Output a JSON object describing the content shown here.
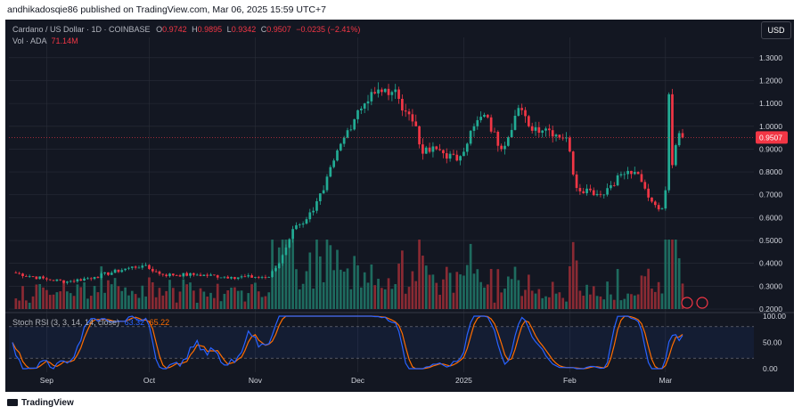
{
  "header": {
    "publisher_line": "andhikadosqie86 published on TradingView.com, Mar 06, 2025 15:59 UTC+7"
  },
  "legend": {
    "symbol": "Cardano / US Dollar · 1D · COINBASE",
    "o_label": "O",
    "o_value": "0.9742",
    "h_label": "H",
    "h_value": "0.9895",
    "l_label": "L",
    "l_value": "0.9342",
    "c_label": "C",
    "c_value": "0.9507",
    "change": "−0.0235 (−2.41%)",
    "vol_label": "Vol · ADA",
    "vol_value": "71.14M",
    "stoch_label": "Stoch RSI (3, 3, 14, 14, close)",
    "stoch_k": "63.32",
    "stoch_d": "65.22"
  },
  "currency_button": "USD",
  "footer": {
    "brand": "TradingView"
  },
  "colors": {
    "up": "#22ab94",
    "down": "#f23645",
    "bg": "#131722",
    "k_line": "#2962ff",
    "d_line": "#ff6d00",
    "grid": "#2a2e39"
  },
  "chart_data": [
    {
      "type": "candlestick",
      "title": "Cardano / US Dollar · 1D · COINBASE",
      "ylim": [
        0.2,
        1.35
      ],
      "y_ticks": [
        "1.3000",
        "1.2000",
        "1.1000",
        "1.0000",
        "0.9000",
        "0.8000",
        "0.7000",
        "0.6000",
        "0.5000",
        "0.4000",
        "0.3000",
        "0.2000"
      ],
      "last_price_label": "0.9507",
      "x_ticks": [
        "Sep",
        "Oct",
        "Nov",
        "Dec",
        "2025",
        "Feb",
        "Mar"
      ],
      "date_range": [
        "2024-08-22",
        "2025-03-06"
      ],
      "waypoints": [
        [
          "2024-08-22",
          0.36
        ],
        [
          "2024-09-01",
          0.33
        ],
        [
          "2024-09-07",
          0.32
        ],
        [
          "2024-09-15",
          0.34
        ],
        [
          "2024-09-25",
          0.38
        ],
        [
          "2024-09-29",
          0.39
        ],
        [
          "2024-10-05",
          0.35
        ],
        [
          "2024-10-15",
          0.35
        ],
        [
          "2024-10-25",
          0.34
        ],
        [
          "2024-11-01",
          0.34
        ],
        [
          "2024-11-05",
          0.34
        ],
        [
          "2024-11-08",
          0.4
        ],
        [
          "2024-11-12",
          0.55
        ],
        [
          "2024-11-14",
          0.57
        ],
        [
          "2024-11-18",
          0.63
        ],
        [
          "2024-11-21",
          0.72
        ],
        [
          "2024-11-24",
          0.85
        ],
        [
          "2024-11-27",
          0.95
        ],
        [
          "2024-12-01",
          1.07
        ],
        [
          "2024-12-03",
          1.1
        ],
        [
          "2024-12-05",
          1.15
        ],
        [
          "2024-12-08",
          1.15
        ],
        [
          "2024-12-11",
          1.15
        ],
        [
          "2024-12-13",
          1.12
        ],
        [
          "2024-12-18",
          1.0
        ],
        [
          "2024-12-20",
          0.88
        ],
        [
          "2024-12-24",
          0.9
        ],
        [
          "2024-12-30",
          0.85
        ],
        [
          "2025-01-04",
          1.0
        ],
        [
          "2025-01-07",
          1.05
        ],
        [
          "2025-01-12",
          0.9
        ],
        [
          "2025-01-17",
          1.08
        ],
        [
          "2025-01-20",
          1.0
        ],
        [
          "2025-01-25",
          0.99
        ],
        [
          "2025-01-31",
          0.95
        ],
        [
          "2025-02-03",
          0.73
        ],
        [
          "2025-02-07",
          0.72
        ],
        [
          "2025-02-10",
          0.7
        ],
        [
          "2025-02-16",
          0.79
        ],
        [
          "2025-02-20",
          0.8
        ],
        [
          "2025-02-25",
          0.67
        ],
        [
          "2025-02-28",
          0.64
        ],
        [
          "2025-03-01",
          0.72
        ],
        [
          "2025-03-02",
          1.14
        ],
        [
          "2025-03-03",
          0.83
        ],
        [
          "2025-03-05",
          0.97
        ],
        [
          "2025-03-06",
          0.9507
        ]
      ]
    },
    {
      "type": "bar",
      "title": "Vol · ADA",
      "last_value": "71.14M"
    },
    {
      "type": "line",
      "title": "Stoch RSI (3, 3, 14, 14, close)",
      "series": [
        {
          "name": "%K",
          "last": 63.32
        },
        {
          "name": "%D",
          "last": 65.22
        }
      ],
      "ylim": [
        0,
        100
      ],
      "y_ticks": [
        "100.00",
        "50.00",
        "0.00"
      ],
      "bands": [
        20,
        80
      ]
    }
  ]
}
